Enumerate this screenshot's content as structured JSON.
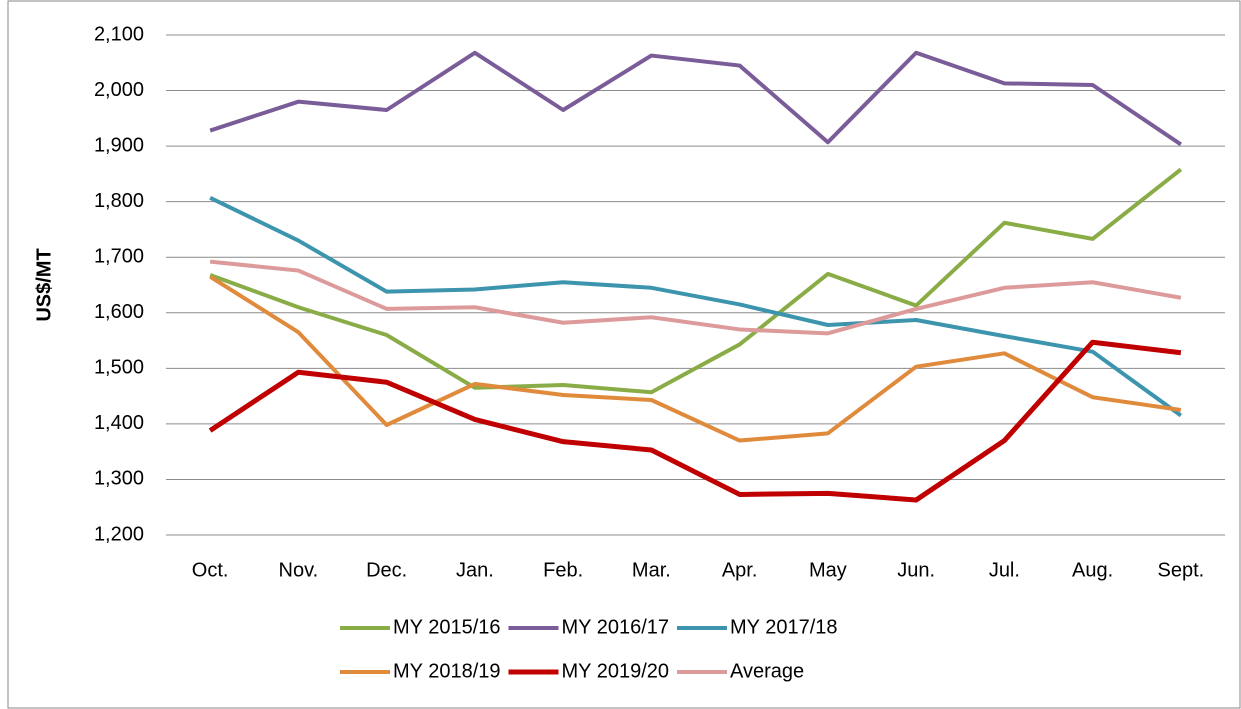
{
  "chart_data": {
    "type": "line",
    "y_label": "US$/MT",
    "categories": [
      "Oct.",
      "Nov.",
      "Dec.",
      "Jan.",
      "Feb.",
      "Mar.",
      "Apr.",
      "May",
      "Jun.",
      "Jul.",
      "Aug.",
      "Sept."
    ],
    "series": [
      {
        "name": "MY 2015/16",
        "color": "#8aac46",
        "values": [
          1668,
          1610,
          1560,
          1465,
          1470,
          1457,
          1543,
          1670,
          1613,
          1762,
          1733,
          1858
        ]
      },
      {
        "name": "MY 2016/17",
        "color": "#7a5c99",
        "values": [
          1928,
          1980,
          1965,
          2068,
          1965,
          2063,
          2045,
          1907,
          2068,
          2013,
          2010,
          1903
        ]
      },
      {
        "name": "MY 2017/18",
        "color": "#3d95ad",
        "values": [
          1807,
          1730,
          1638,
          1642,
          1655,
          1645,
          1615,
          1578,
          1587,
          1558,
          1530,
          1415
        ]
      },
      {
        "name": "MY 2018/19",
        "color": "#e08a3c",
        "values": [
          1665,
          1565,
          1398,
          1472,
          1452,
          1443,
          1370,
          1383,
          1503,
          1527,
          1448,
          1425
        ]
      },
      {
        "name": "MY 2019/20",
        "color": "#c00000",
        "values": [
          1388,
          1493,
          1475,
          1408,
          1368,
          1353,
          1273,
          1275,
          1263,
          1370,
          1547,
          1528
        ]
      },
      {
        "name": "Average",
        "color": "#dd9a9a",
        "values": [
          1692,
          1676,
          1607,
          1610,
          1582,
          1592,
          1570,
          1563,
          1607,
          1645,
          1655,
          1627
        ]
      }
    ],
    "ylim": [
      1200,
      2100
    ],
    "yticks": [
      {
        "value": 1200,
        "label": "1,200"
      },
      {
        "value": 1300,
        "label": "1,300"
      },
      {
        "value": 1400,
        "label": "1,400"
      },
      {
        "value": 1500,
        "label": "1,500"
      },
      {
        "value": 1600,
        "label": "1,600"
      },
      {
        "value": 1700,
        "label": "1,700"
      },
      {
        "value": 1800,
        "label": "1,800"
      },
      {
        "value": 1900,
        "label": "1,900"
      },
      {
        "value": 2000,
        "label": "2,000"
      },
      {
        "value": 2100,
        "label": "2,100"
      }
    ],
    "grid": true,
    "legend": "bottom"
  }
}
